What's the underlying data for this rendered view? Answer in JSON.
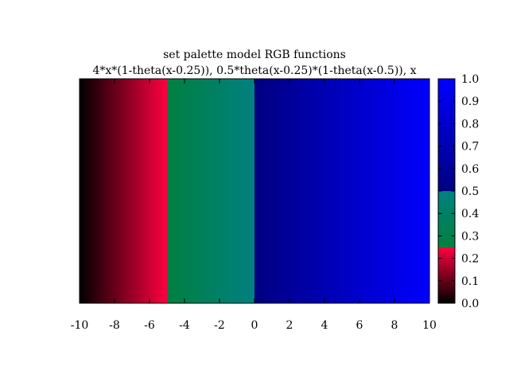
{
  "chart_data": {
    "type": "heatmap",
    "title": "set palette model RGB functions",
    "subtitle": "4*x*(1-theta(x-0.25)), 0.5*theta(x-0.25)*(1-theta(x-0.5)), x",
    "xlabel": "",
    "ylabel": "",
    "xlim": [
      -10,
      10
    ],
    "grid": false,
    "x_ticks": [
      -10,
      -8,
      -6,
      -4,
      -2,
      0,
      2,
      4,
      6,
      8,
      10
    ],
    "x_tick_labels": [
      "-10",
      "-8",
      "-6",
      "-4",
      "-2",
      "0",
      "2",
      "4",
      "6",
      "8",
      "10"
    ],
    "colorbar": {
      "range": [
        0,
        1
      ],
      "ticks": [
        0,
        0.1,
        0.2,
        0.3,
        0.4,
        0.5,
        0.6,
        0.7,
        0.8,
        0.9,
        1.0
      ],
      "tick_labels": [
        "0.0",
        "0.1",
        "0.2",
        "0.3",
        "0.4",
        "0.5",
        "0.6",
        "0.7",
        "0.8",
        "0.9",
        "1.0"
      ],
      "placement": "right"
    },
    "palette": {
      "model": "RGB",
      "red": "4*x*(1-theta(x-0.25))",
      "green": "0.5*theta(x-0.25)*(1-theta(x-0.5))",
      "blue": "x"
    },
    "color_value_formula": "(x+10)/20"
  }
}
